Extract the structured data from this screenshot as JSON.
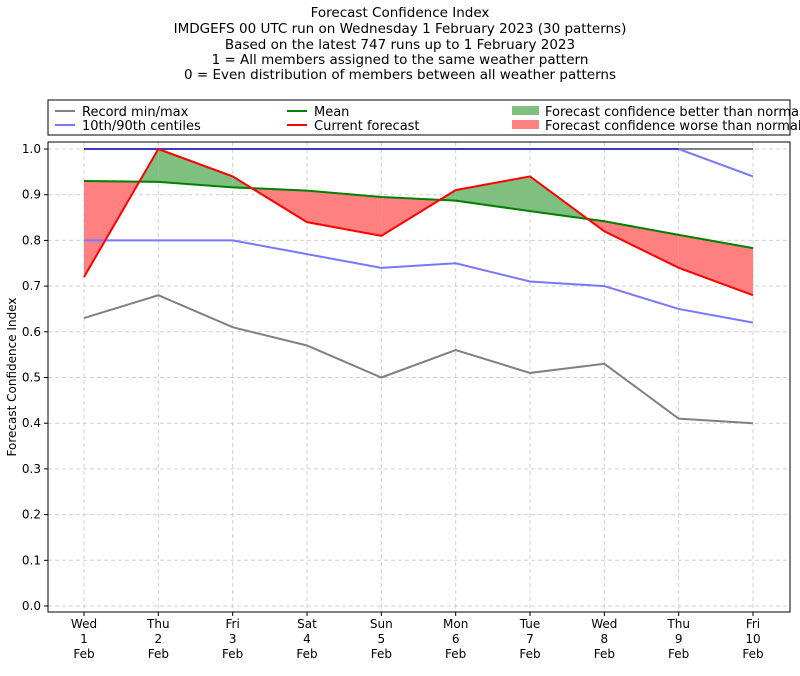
{
  "chart_data": {
    "type": "line",
    "title_lines": [
      "Forecast Confidence Index",
      "IMDGEFS 00 UTC run on Wednesday 1 February 2023 (30 patterns)",
      "Based on the latest 747 runs up to 1 February 2023",
      "1 = All members assigned to the same weather pattern",
      "0 = Even distribution of members between all weather patterns"
    ],
    "ylabel": "Forecast Confidence Index",
    "ylim": [
      0,
      1
    ],
    "yticks": [
      "0.0",
      "0.1",
      "0.2",
      "0.3",
      "0.4",
      "0.5",
      "0.6",
      "0.7",
      "0.8",
      "0.9",
      "1.0"
    ],
    "categories": [
      [
        "Wed",
        "1",
        "Feb"
      ],
      [
        "Thu",
        "2",
        "Feb"
      ],
      [
        "Fri",
        "3",
        "Feb"
      ],
      [
        "Sat",
        "4",
        "Feb"
      ],
      [
        "Sun",
        "5",
        "Feb"
      ],
      [
        "Mon",
        "6",
        "Feb"
      ],
      [
        "Tue",
        "7",
        "Feb"
      ],
      [
        "Wed",
        "8",
        "Feb"
      ],
      [
        "Thu",
        "9",
        "Feb"
      ],
      [
        "Fri",
        "10",
        "Feb"
      ]
    ],
    "grid": true,
    "legend_position": "top",
    "series": [
      {
        "name": "Record min/max",
        "color": "#808080",
        "min": [
          0.63,
          0.68,
          0.61,
          0.57,
          0.5,
          0.56,
          0.51,
          0.53,
          0.41,
          0.4
        ],
        "max": [
          1,
          1,
          1,
          1,
          1,
          1,
          1,
          1,
          1,
          1
        ]
      },
      {
        "name": "10th/90th centiles",
        "color": "#7777ff",
        "p10": [
          0.8,
          0.8,
          0.8,
          0.77,
          0.74,
          0.75,
          0.71,
          0.7,
          0.65,
          0.62
        ],
        "p90": [
          1,
          1,
          1,
          1,
          1,
          1,
          1,
          1,
          1,
          0.94
        ]
      },
      {
        "name": "Mean",
        "color": "#008000",
        "values": [
          0.93,
          0.928,
          0.916,
          0.909,
          0.895,
          0.887,
          0.864,
          0.842,
          0.812,
          0.783
        ]
      },
      {
        "name": "Current forecast",
        "color": "#ff0000",
        "values": [
          0.72,
          1.0,
          0.94,
          0.84,
          0.81,
          0.91,
          0.94,
          0.82,
          0.74,
          0.68
        ]
      }
    ],
    "fills": [
      {
        "name": "Forecast confidence better than normal",
        "color": "#7fbf7f"
      },
      {
        "name": "Forecast confidence worse than normal",
        "color": "#ff8080"
      }
    ]
  }
}
